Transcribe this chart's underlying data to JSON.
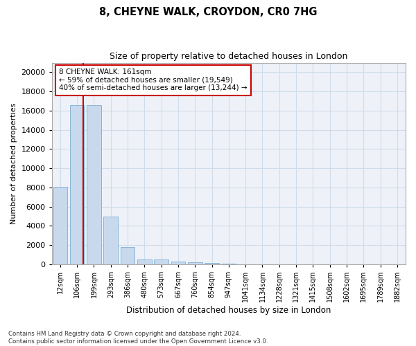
{
  "title1": "8, CHEYNE WALK, CROYDON, CR0 7HG",
  "title2": "Size of property relative to detached houses in London",
  "xlabel": "Distribution of detached houses by size in London",
  "ylabel": "Number of detached properties",
  "categories": [
    "12sqm",
    "106sqm",
    "199sqm",
    "293sqm",
    "386sqm",
    "480sqm",
    "573sqm",
    "667sqm",
    "760sqm",
    "854sqm",
    "947sqm",
    "1041sqm",
    "1134sqm",
    "1228sqm",
    "1321sqm",
    "1415sqm",
    "1508sqm",
    "1602sqm",
    "1695sqm",
    "1789sqm",
    "1882sqm"
  ],
  "values": [
    8050,
    16600,
    16600,
    5000,
    1800,
    480,
    480,
    250,
    180,
    130,
    80,
    0,
    0,
    0,
    0,
    0,
    0,
    0,
    0,
    0,
    0
  ],
  "bar_color": "#c8d9ee",
  "bar_edge_color": "#7aadd4",
  "vline_color": "#cc0000",
  "vline_position": 1.35,
  "annotation_text": "8 CHEYNE WALK: 161sqm\n← 59% of detached houses are smaller (19,549)\n40% of semi-detached houses are larger (13,244) →",
  "annotation_box_color": "#ffffff",
  "annotation_box_edge": "#cc0000",
  "ylim": [
    0,
    21000
  ],
  "yticks": [
    0,
    2000,
    4000,
    6000,
    8000,
    10000,
    12000,
    14000,
    16000,
    18000,
    20000
  ],
  "footnote": "Contains HM Land Registry data © Crown copyright and database right 2024.\nContains public sector information licensed under the Open Government Licence v3.0.",
  "grid_color": "#d0dcea",
  "background_color": "#eef2f8"
}
